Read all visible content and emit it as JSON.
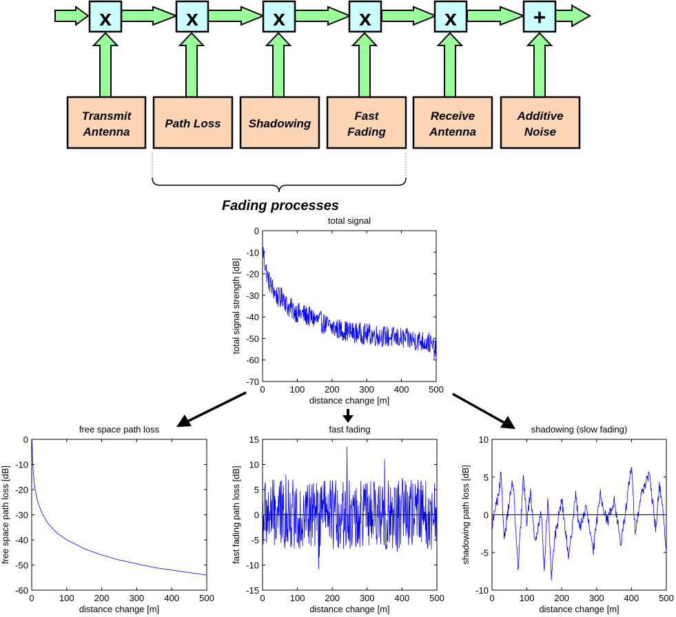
{
  "colors": {
    "arrow_fill": "#99FF99",
    "operator_fill": "#CCFFFF",
    "block_fill": "#FCD5B5",
    "plot_line": "#0000FF",
    "stroke": "#000000"
  },
  "block_diagram": {
    "operators": [
      "x",
      "x",
      "x",
      "x",
      "x",
      "+"
    ],
    "blocks": [
      {
        "lines": [
          "Transmit",
          "Antenna"
        ]
      },
      {
        "lines": [
          "Path Loss"
        ]
      },
      {
        "lines": [
          "Shadowing"
        ]
      },
      {
        "lines": [
          "Fast",
          "Fading"
        ]
      },
      {
        "lines": [
          "Receive",
          "Antenna"
        ]
      },
      {
        "lines": [
          "Additive",
          "Noise"
        ]
      }
    ],
    "brace_label": "Fading processes"
  },
  "chart_data": [
    {
      "type": "line",
      "title": "total signal",
      "xlabel": "distance change [m]",
      "ylabel": "total signal strength [dB]",
      "xlim": [
        0,
        500
      ],
      "ylim": [
        -70,
        0
      ],
      "xticks": [
        0,
        100,
        200,
        300,
        400,
        500
      ],
      "yticks": [
        0,
        -10,
        -20,
        -30,
        -40,
        -50,
        -60,
        -70
      ],
      "grid": false,
      "zero_line": false,
      "series": [
        {
          "x": [
            0,
            5,
            10,
            15,
            20,
            30,
            40,
            50,
            60,
            70,
            80,
            100,
            120,
            150,
            200,
            250,
            300,
            350,
            400,
            450,
            480,
            500
          ],
          "values": [
            -8,
            -13,
            -18,
            -22,
            -24,
            -27,
            -30,
            -32,
            -30,
            -35,
            -36,
            -38,
            -39,
            -41,
            -45,
            -47,
            -48,
            -49,
            -50,
            -51,
            -52,
            -56
          ]
        }
      ]
    },
    {
      "type": "line",
      "title": "free space path loss",
      "xlabel": "distance change [m]",
      "ylabel": "free space path loss [dB]",
      "xlim": [
        0,
        500
      ],
      "ylim": [
        -60,
        0
      ],
      "xticks": [
        0,
        100,
        200,
        300,
        400,
        500
      ],
      "yticks": [
        0,
        -10,
        -20,
        -30,
        -40,
        -50,
        -60
      ],
      "grid": false,
      "zero_line": false,
      "series": [
        {
          "x": [
            1,
            2,
            3,
            5,
            7,
            10,
            15,
            20,
            30,
            40,
            50,
            70,
            100,
            150,
            200,
            250,
            300,
            350,
            400,
            450,
            500
          ],
          "values": [
            0,
            -6,
            -9.5,
            -14,
            -17,
            -20,
            -23.5,
            -26,
            -29.5,
            -32,
            -34,
            -37,
            -40,
            -43.5,
            -46,
            -48,
            -49.5,
            -51,
            -52,
            -53,
            -54
          ]
        }
      ]
    },
    {
      "type": "line",
      "title": "fast fading",
      "xlabel": "distance change [m]",
      "ylabel": "fast fading path loss [dB]",
      "xlim": [
        0,
        500
      ],
      "ylim": [
        -15,
        15
      ],
      "xticks": [
        0,
        100,
        200,
        300,
        400,
        500
      ],
      "yticks": [
        15,
        10,
        5,
        0,
        -5,
        -10,
        -15
      ],
      "grid": false,
      "zero_line": true,
      "series": [
        {
          "x": [
            0,
            10,
            20,
            30,
            40,
            50,
            60,
            70,
            80,
            100,
            125,
            150,
            160,
            175,
            200,
            225,
            245,
            270,
            300,
            330,
            350,
            380,
            400,
            425,
            450,
            475,
            500
          ],
          "values": [
            -5,
            8,
            -9,
            5,
            -7,
            9,
            -6,
            14,
            -10,
            7,
            -8,
            10,
            -12,
            6,
            -9,
            11,
            14,
            -8,
            9,
            -7,
            11,
            -14,
            8,
            -9,
            10,
            -6,
            2
          ]
        }
      ]
    },
    {
      "type": "line",
      "title": "shadowing (slow fading)",
      "xlabel": "distance change [m]",
      "ylabel": "shadowing path loss [dB]",
      "xlim": [
        0,
        500
      ],
      "ylim": [
        -10,
        10
      ],
      "xticks": [
        0,
        100,
        200,
        300,
        400,
        500
      ],
      "yticks": [
        10,
        5,
        0,
        -5,
        -10
      ],
      "grid": false,
      "zero_line": true,
      "series": [
        {
          "x": [
            0,
            10,
            20,
            25,
            35,
            50,
            60,
            75,
            90,
            100,
            110,
            125,
            140,
            150,
            160,
            170,
            180,
            200,
            220,
            240,
            250,
            270,
            290,
            310,
            330,
            350,
            370,
            390,
            400,
            410,
            430,
            450,
            470,
            480,
            490,
            500
          ],
          "values": [
            -1.5,
            1,
            2.5,
            5.5,
            -3,
            2,
            4.5,
            -7.5,
            5,
            -1,
            3,
            -4,
            1,
            -7,
            2,
            -8.5,
            -3,
            2,
            -6,
            3,
            -2,
            1,
            -5,
            3,
            -1,
            2,
            -4,
            3,
            6.5,
            -2,
            3,
            5.5,
            -2,
            4,
            1,
            -5
          ]
        }
      ]
    }
  ]
}
